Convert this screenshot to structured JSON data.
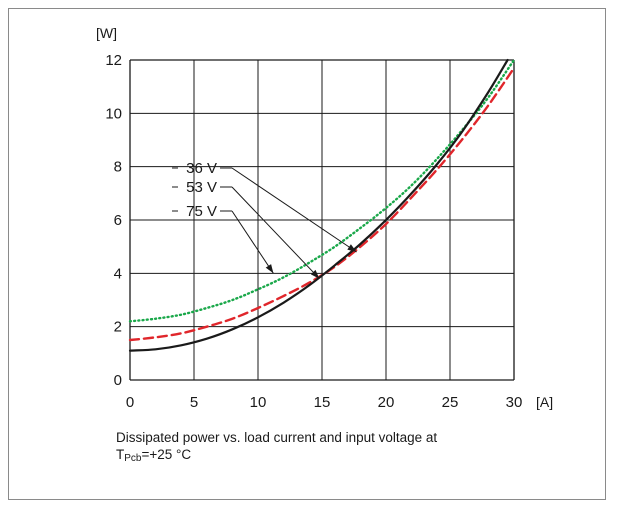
{
  "chart_data": {
    "type": "line",
    "xlabel": "[A]",
    "ylabel": "[W]",
    "xlim": [
      0,
      30
    ],
    "ylim": [
      0,
      12
    ],
    "xticks": [
      0,
      5,
      10,
      15,
      20,
      25,
      30
    ],
    "yticks": [
      0,
      2,
      4,
      6,
      8,
      10,
      12
    ],
    "grid": true,
    "series": [
      {
        "name": "36 V",
        "color": "#1aa84a",
        "style": "dotted",
        "x": [
          0,
          2,
          4,
          6,
          8,
          10,
          12,
          14,
          16,
          18,
          20,
          22,
          24,
          26,
          28,
          30
        ],
        "y": [
          2.2,
          2.3,
          2.45,
          2.7,
          3.0,
          3.4,
          3.85,
          4.4,
          5.0,
          5.7,
          6.45,
          7.3,
          8.3,
          9.4,
          10.6,
          12.0
        ]
      },
      {
        "name": "53 V",
        "color": "#e0262b",
        "style": "dashed",
        "x": [
          0,
          2,
          4,
          6,
          8,
          10,
          12,
          14,
          16,
          18,
          20,
          22,
          24,
          26,
          28,
          30
        ],
        "y": [
          1.5,
          1.6,
          1.75,
          2.0,
          2.3,
          2.7,
          3.15,
          3.65,
          4.25,
          5.0,
          5.85,
          6.85,
          7.9,
          9.05,
          10.3,
          11.7
        ]
      },
      {
        "name": "75 V",
        "color": "#1a1a1a",
        "style": "solid",
        "x": [
          0,
          2,
          4,
          6,
          8,
          10,
          12,
          14,
          16,
          18,
          20,
          22,
          24,
          26,
          28,
          29.5
        ],
        "y": [
          1.1,
          1.15,
          1.3,
          1.55,
          1.9,
          2.35,
          2.9,
          3.55,
          4.3,
          5.1,
          6.0,
          7.0,
          8.1,
          9.35,
          10.8,
          12.0
        ]
      }
    ],
    "annotations": [
      {
        "text": "36 V",
        "target": [
          17.7,
          4.8
        ]
      },
      {
        "text": "53 V",
        "target": [
          14.8,
          3.8
        ]
      },
      {
        "text": "75 V",
        "target": [
          11.2,
          4.0
        ]
      }
    ]
  },
  "caption": {
    "line1": "Dissipated power vs. load current and input voltage at",
    "t_main": "T",
    "t_sub": "Pcb",
    "t_rest": "=+25 °C"
  }
}
